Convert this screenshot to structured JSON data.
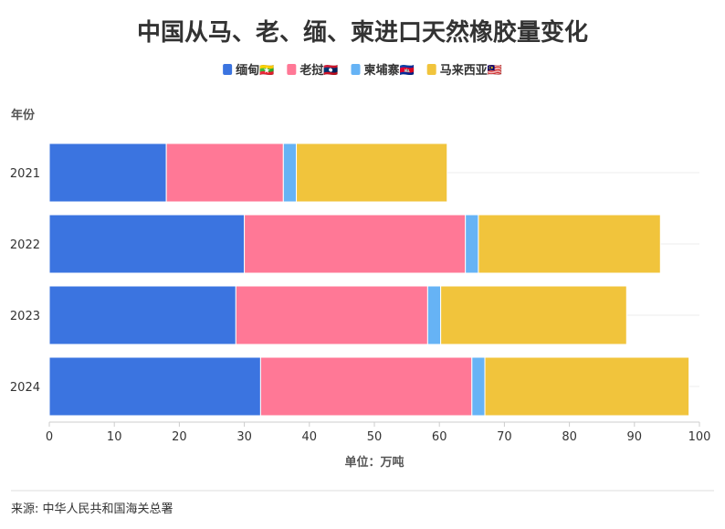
{
  "chart_data": {
    "type": "bar",
    "orientation": "horizontal",
    "stacked": true,
    "title": "中国从马、老、缅、柬进口天然橡胶量变化",
    "ylabel": "年份",
    "xlabel": "单位：万吨",
    "categories": [
      "2021",
      "2022",
      "2023",
      "2024"
    ],
    "xlim": [
      0,
      100
    ],
    "xticks": [
      0,
      10,
      20,
      30,
      40,
      50,
      60,
      70,
      80,
      90,
      100
    ],
    "grid": true,
    "legend_position": "top-center",
    "series": [
      {
        "name": "缅甸🇲🇲",
        "color": "#3b74e0",
        "values": [
          18,
          30,
          28.7,
          32.5
        ]
      },
      {
        "name": "老挝🇱🇦",
        "color": "#ff7896",
        "values": [
          18,
          34,
          29.5,
          32.5
        ]
      },
      {
        "name": "柬埔寨🇰🇭",
        "color": "#66b3f5",
        "values": [
          2,
          2,
          2,
          2
        ]
      },
      {
        "name": "马来西亚🇲🇾",
        "color": "#f1c43c",
        "values": [
          23.2,
          28,
          28.6,
          31.4
        ]
      }
    ]
  },
  "source": "来源: 中华人民共和国海关总署"
}
